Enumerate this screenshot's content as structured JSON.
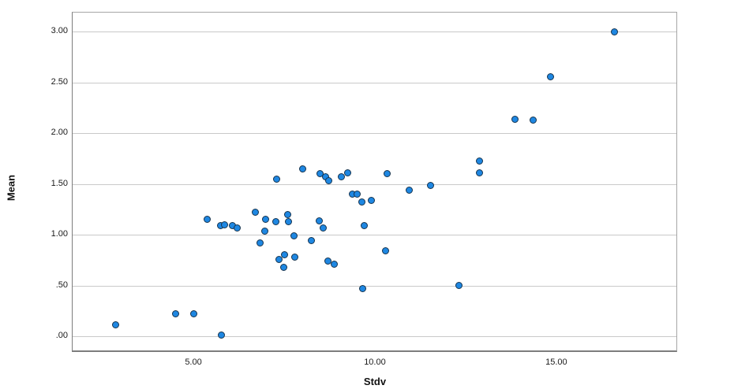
{
  "chart": {
    "colors": {
      "point_fill": "#1e87e2",
      "point_stroke": "#16344f",
      "gridline": "#c9c9c9",
      "frame": "#7d7d7d",
      "text": "#1a1a1a"
    }
  },
  "chart_data": {
    "type": "scatter",
    "title": "",
    "xlabel": "Stdv",
    "ylabel": "Mean",
    "x_ticks": [
      5,
      10,
      15
    ],
    "x_tick_labels": [
      "5.00",
      "10.00",
      "15.00"
    ],
    "y_ticks": [
      0,
      0.5,
      1.0,
      1.5,
      2.0,
      2.5,
      3.0
    ],
    "y_tick_labels": [
      ".00",
      ".50",
      "1.00",
      "1.50",
      "2.00",
      "2.50",
      "3.00"
    ],
    "xlim": [
      1.65,
      18.33
    ],
    "ylim": [
      -0.163,
      3.19
    ],
    "grid": "horizontal",
    "legend": "none",
    "points": [
      [
        2.84,
        0.11
      ],
      [
        4.48,
        0.22
      ],
      [
        4.98,
        0.22
      ],
      [
        5.75,
        0.01
      ],
      [
        5.35,
        1.15
      ],
      [
        5.72,
        1.09
      ],
      [
        5.84,
        1.1
      ],
      [
        6.05,
        1.09
      ],
      [
        6.19,
        1.07
      ],
      [
        6.68,
        1.22
      ],
      [
        6.97,
        1.15
      ],
      [
        7.24,
        1.13
      ],
      [
        7.58,
        1.2
      ],
      [
        7.59,
        1.13
      ],
      [
        6.95,
        1.04
      ],
      [
        6.82,
        0.92
      ],
      [
        7.75,
        0.99
      ],
      [
        8.23,
        0.94
      ],
      [
        7.34,
        0.76
      ],
      [
        7.48,
        0.8
      ],
      [
        7.78,
        0.78
      ],
      [
        7.47,
        0.68
      ],
      [
        7.27,
        1.55
      ],
      [
        7.99,
        1.65
      ],
      [
        8.47,
        1.6
      ],
      [
        8.62,
        1.57
      ],
      [
        8.71,
        1.53
      ],
      [
        9.05,
        1.57
      ],
      [
        9.22,
        1.61
      ],
      [
        9.35,
        1.4
      ],
      [
        9.49,
        1.4
      ],
      [
        9.62,
        1.32
      ],
      [
        9.89,
        1.34
      ],
      [
        8.45,
        1.14
      ],
      [
        8.55,
        1.07
      ],
      [
        9.68,
        1.09
      ],
      [
        10.28,
        0.84
      ],
      [
        8.68,
        0.74
      ],
      [
        8.85,
        0.71
      ],
      [
        9.64,
        0.47
      ],
      [
        10.32,
        1.6
      ],
      [
        10.92,
        1.44
      ],
      [
        11.52,
        1.49
      ],
      [
        12.86,
        1.73
      ],
      [
        12.86,
        1.61
      ],
      [
        12.29,
        0.5
      ],
      [
        13.83,
        2.14
      ],
      [
        14.33,
        2.13
      ],
      [
        14.82,
        2.56
      ],
      [
        16.59,
        3.0
      ]
    ]
  }
}
